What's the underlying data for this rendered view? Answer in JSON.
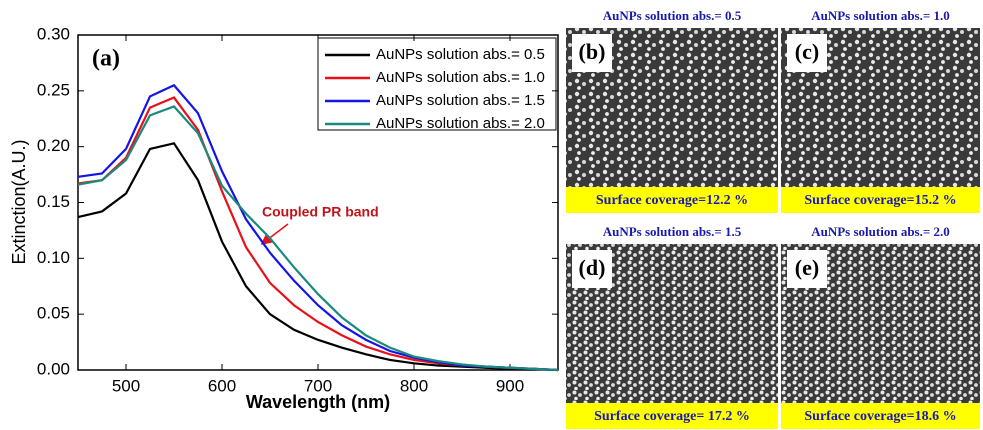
{
  "chart_data": {
    "type": "line",
    "panel_label": "(a)",
    "xlabel": "Wavelength (nm)",
    "ylabel": "Extinction(A.U.)",
    "annotation": "Coupled PR band",
    "x": [
      450,
      475,
      500,
      525,
      550,
      575,
      600,
      625,
      650,
      675,
      700,
      725,
      750,
      775,
      800,
      825,
      850,
      875,
      900,
      925,
      950
    ],
    "series": [
      {
        "name": "AuNPs solution abs.= 0.5",
        "color": "#000000",
        "values": [
          0.137,
          0.142,
          0.158,
          0.198,
          0.203,
          0.17,
          0.115,
          0.075,
          0.05,
          0.036,
          0.027,
          0.02,
          0.014,
          0.009,
          0.006,
          0.004,
          0.003,
          0.002,
          0.001,
          0.001,
          0
        ]
      },
      {
        "name": "AuNPs solution abs.= 1.0",
        "color": "#e8101a",
        "values": [
          0.167,
          0.17,
          0.19,
          0.235,
          0.244,
          0.215,
          0.16,
          0.11,
          0.078,
          0.058,
          0.043,
          0.031,
          0.021,
          0.014,
          0.009,
          0.006,
          0.004,
          0.003,
          0.002,
          0.001,
          0
        ]
      },
      {
        "name": "AuNPs solution abs.= 1.5",
        "color": "#1414e6",
        "values": [
          0.173,
          0.176,
          0.198,
          0.245,
          0.255,
          0.23,
          0.178,
          0.135,
          0.105,
          0.08,
          0.058,
          0.04,
          0.027,
          0.017,
          0.011,
          0.007,
          0.004,
          0.003,
          0.002,
          0.001,
          0
        ]
      },
      {
        "name": "AuNPs solution abs.= 2.0",
        "color": "#1a8a7e",
        "values": [
          0.166,
          0.17,
          0.188,
          0.228,
          0.236,
          0.212,
          0.165,
          0.14,
          0.118,
          0.092,
          0.068,
          0.047,
          0.031,
          0.02,
          0.012,
          0.008,
          0.005,
          0.003,
          0.002,
          0.001,
          0
        ]
      }
    ],
    "xlim": [
      450,
      950
    ],
    "xticks": [
      500,
      600,
      700,
      800,
      900
    ],
    "ylim": [
      0,
      0.3
    ],
    "yticks": [
      {
        "value": 0,
        "label": "0.00"
      },
      {
        "value": 0.05,
        "label": "0.05"
      },
      {
        "value": 0.1,
        "label": "0.10"
      },
      {
        "value": 0.15,
        "label": "0.15"
      },
      {
        "value": 0.2,
        "label": "0.20"
      },
      {
        "value": 0.25,
        "label": "0.25"
      },
      {
        "value": 0.3,
        "label": "0.30"
      }
    ],
    "legend": "upper right"
  },
  "panels": [
    {
      "label": "(b)",
      "title": "AuNPs solution abs.= 0.5",
      "caption": "Surface coverage=12.2 %"
    },
    {
      "label": "(c)",
      "title": "AuNPs solution abs.= 1.0",
      "caption": "Surface coverage=15.2 %"
    },
    {
      "label": "(d)",
      "title": "AuNPs solution abs.= 1.5",
      "caption": "Surface coverage= 17.2 %"
    },
    {
      "label": "(e)",
      "title": "AuNPs solution abs.= 2.0",
      "caption": "Surface coverage=18.6 %"
    }
  ]
}
